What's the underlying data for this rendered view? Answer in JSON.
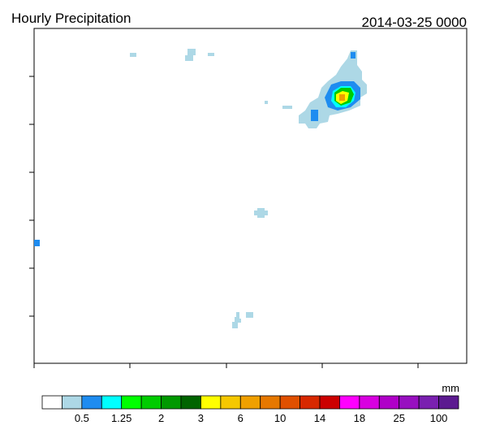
{
  "header": {
    "title": "Hourly Precipitation",
    "time": "2014-03-25 0000"
  },
  "colorbar": {
    "unit": "mm",
    "colors": [
      "#ffffff",
      "#add8e6",
      "#1e8cf0",
      "#00ffff",
      "#00ff00",
      "#00cc00",
      "#009900",
      "#006400",
      "#ffff00",
      "#f5c800",
      "#f0a000",
      "#e67800",
      "#e05000",
      "#d82800",
      "#cc0000",
      "#ff00ff",
      "#d800e0",
      "#b000c8",
      "#9810c0",
      "#7a20b0",
      "#5c1a90"
    ],
    "labels": [
      "0.5",
      "1.25",
      "2",
      "3",
      "6",
      "10",
      "14",
      "18",
      "25",
      "100"
    ]
  }
}
